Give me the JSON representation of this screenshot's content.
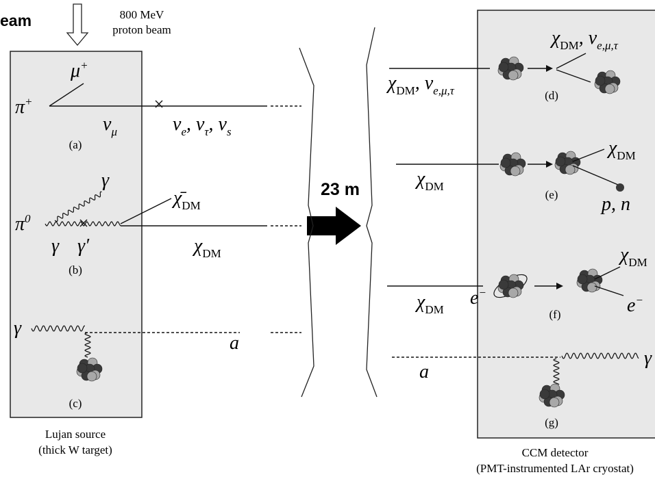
{
  "beam_label": "eam",
  "beam_energy": "800 MeV",
  "beam_type": "proton beam",
  "distance": "23 m",
  "source": {
    "title": "Lujan source",
    "subtitle": "(thick W target)"
  },
  "detector": {
    "title": "CCM detector",
    "subtitle": "(PMT-instrumented LAr cryostat)"
  },
  "panels": {
    "a": "(a)",
    "b": "(b)",
    "c": "(c)",
    "d": "(d)",
    "e": "(e)",
    "f": "(f)",
    "g": "(g)"
  },
  "labels": {
    "mu_plus": [
      {
        "text": "μ",
        "sup": "+"
      }
    ],
    "pi_plus": [
      {
        "text": "π",
        "sup": "+"
      }
    ],
    "nu_mu": [
      {
        "text": "ν",
        "sub": "μ"
      }
    ],
    "nu_out": [
      {
        "text": "ν",
        "sub": "e"
      },
      {
        "text": ", ν",
        "sub": "τ"
      },
      {
        "text": ", ν",
        "sub": "s"
      }
    ],
    "gamma_b_up": [
      {
        "text": "γ"
      }
    ],
    "chibar_dm": [
      {
        "text": "χ̄",
        "sub": "DM"
      }
    ],
    "pi_zero": [
      {
        "text": "π",
        "sup": "0"
      }
    ],
    "gamma_b_low": [
      {
        "text": "γ"
      }
    ],
    "gamma_prime": [
      {
        "text": "γ′"
      }
    ],
    "chi_b": [
      {
        "text": "χ",
        "sub": "DM"
      }
    ],
    "gamma_c": [
      {
        "text": "γ"
      }
    ],
    "a_c": [
      {
        "text": "a"
      }
    ],
    "d_in": [
      {
        "text": "χ",
        "sub": "DM"
      },
      {
        "text": ", ν",
        "sub": "e,μ,τ"
      }
    ],
    "d_out": [
      {
        "text": "χ",
        "sub": "DM"
      },
      {
        "text": ", ν",
        "sub": "e,μ,τ"
      }
    ],
    "e_in": [
      {
        "text": "χ",
        "sub": "DM"
      }
    ],
    "e_out": [
      {
        "text": "χ",
        "sub": "DM"
      }
    ],
    "p_n": [
      {
        "text": "p, n"
      }
    ],
    "f_in": [
      {
        "text": "χ",
        "sub": "DM"
      }
    ],
    "e_minus_in": [
      {
        "text": "e",
        "sup": "−"
      }
    ],
    "f_out": [
      {
        "text": "χ",
        "sub": "DM"
      }
    ],
    "e_minus_out": [
      {
        "text": "e",
        "sup": "−"
      }
    ],
    "a_g": [
      {
        "text": "a"
      }
    ],
    "gamma_g": [
      {
        "text": "γ"
      }
    ]
  }
}
